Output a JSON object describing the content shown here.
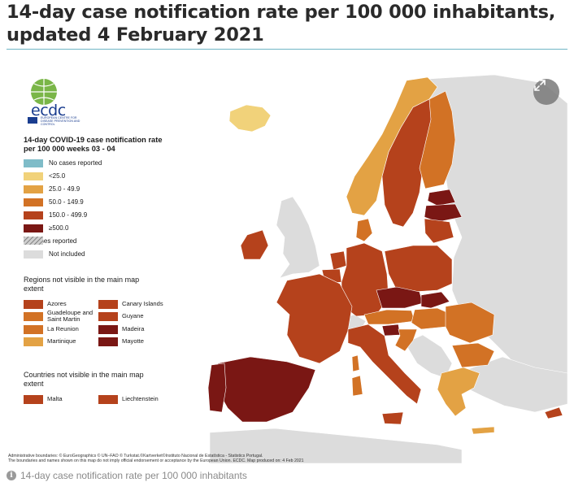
{
  "title": "14-day case notification rate per 100 000 inhabitants, updated 4 February 2021",
  "logo": {
    "text": "ecdc",
    "subtext": "EUROPEAN CENTRE FOR DISEASE PREVENTION AND CONTROL"
  },
  "legend": {
    "title": "14-day COVID-19 case notification rate per 100 000 weeks  03 - 04",
    "items": [
      {
        "label": "No cases reported",
        "color": "#7fbcc8"
      },
      {
        "label": "<25.0",
        "color": "#f1d27a"
      },
      {
        "label": "25.0 - 49.9",
        "color": "#e3a244"
      },
      {
        "label": "50.0 - 149.9",
        "color": "#d27225"
      },
      {
        "label": "150.0 - 499.9",
        "color": "#b5421c"
      },
      {
        "label": "≥500.0",
        "color": "#7a1714"
      },
      {
        "label": "No cases reported",
        "color": "hatched"
      },
      {
        "label": "Not included",
        "color": "#dcdcdc"
      }
    ]
  },
  "regions_title": "Regions not visible in the main map extent",
  "regions": [
    {
      "label": "Azores",
      "color": "#b5421c"
    },
    {
      "label": "Canary Islands",
      "color": "#b5421c"
    },
    {
      "label": "Guadeloupe and Saint Martin",
      "color": "#d27225"
    },
    {
      "label": "Guyane",
      "color": "#b5421c"
    },
    {
      "label": "La Reunion",
      "color": "#d27225"
    },
    {
      "label": "Madeira",
      "color": "#7a1714"
    },
    {
      "label": "Martinique",
      "color": "#e3a244"
    },
    {
      "label": "Mayotte",
      "color": "#7a1714"
    }
  ],
  "countries_title": "Countries not visible in the main map extent",
  "countries": [
    {
      "label": "Malta",
      "color": "#b5421c"
    },
    {
      "label": "Liechtenstein",
      "color": "#b5421c"
    }
  ],
  "credit_line1": "Administrative boundaries: © EuroGeographics © UN–FAO © Turkstat.©Kartverket©Instituto Nacional de Estatística - Statistics Portugal.",
  "credit_line2": "The boundaries and names shown on this map do not imply official endorsement or acceptance by the European Union. ECDC. Map produced on: 4 Feb 2021",
  "footer_caption": "14-day case notification rate per 100 000 inhabitants",
  "icons": {
    "expand": "expand-icon",
    "info": "info-icon"
  },
  "colors": {
    "sea": "#ffffff",
    "non_eu": "#dcdcdc",
    "accent_rule": "#6fb6c6"
  }
}
